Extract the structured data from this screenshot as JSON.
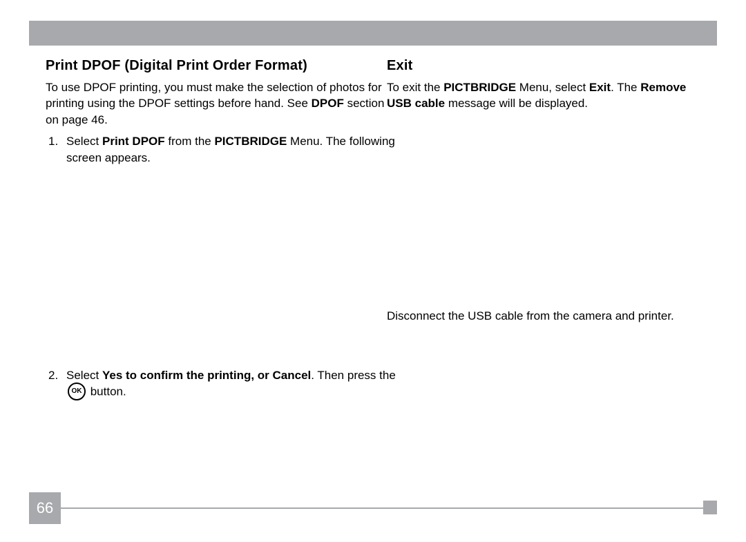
{
  "page_number": "66",
  "colors": {
    "bar_bg": "#a7a9ac",
    "page_bg": "#ffffff",
    "text": "#000000",
    "page_num_text": "#ffffff"
  },
  "typography": {
    "heading_fontsize_pt": 15,
    "body_fontsize_pt": 13,
    "heading_family": "Trebuchet MS",
    "body_family": "Arial"
  },
  "left": {
    "heading": "Print DPOF (Digital Print Order Format)",
    "intro_pre": "To use DPOF printing, you must make the selection of photos for printing using the DPOF settings before hand. See ",
    "intro_dpof": "DPOF",
    "intro_post": " section on page 46.",
    "step1": {
      "num": "1.",
      "pre": "Select ",
      "item": "Print DPOF",
      "mid": " from the ",
      "menu": "PICTBRIDGE",
      "post": " Menu. The following screen appears."
    },
    "step2": {
      "num": "2.",
      "pre": "Select ",
      "yes_phrase": "Yes to confirm the printing, or Cancel",
      "post1": ". Then press the ",
      "ok_label": "OK",
      "post2": " button."
    }
  },
  "right": {
    "heading": "Exit",
    "para_pre": "To exit the ",
    "menu": "PICTBRIDGE",
    "para_mid1": " Menu, select ",
    "exit_label": "Exit",
    "para_mid2": ". The  ",
    "remove_label": "Remove USB cable",
    "para_post": "  message will be displayed.",
    "disconnect": "Disconnect the USB cable from the camera and printer."
  }
}
